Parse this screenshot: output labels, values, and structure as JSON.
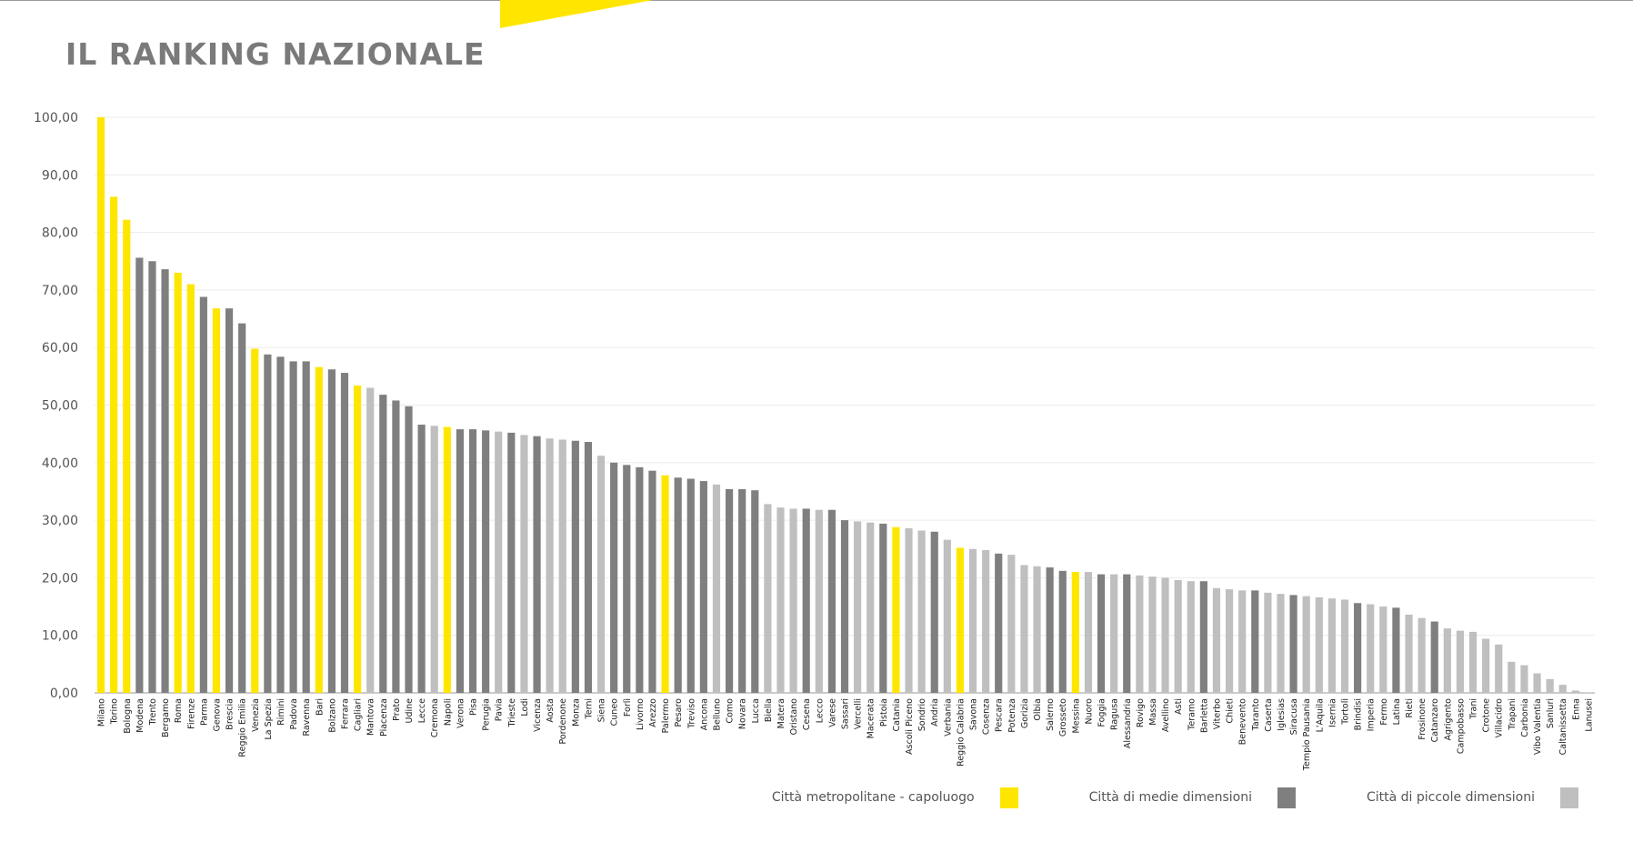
{
  "page": {
    "title": "IL RANKING NAZIONALE"
  },
  "colors": {
    "metropolitana": "#ffe600",
    "media": "#7f7f7f",
    "piccola": "#bfbfbf",
    "brand": "#ffe600"
  },
  "legend": [
    {
      "key": "metropolitana",
      "label": "Città metropolitane - capoluogo"
    },
    {
      "key": "media",
      "label": "Città di medie dimensioni"
    },
    {
      "key": "piccola",
      "label": "Città di piccole dimensioni"
    }
  ],
  "chart_data": {
    "type": "bar",
    "title": "IL RANKING NAZIONALE",
    "xlabel": "",
    "ylabel": "",
    "ylim": [
      0,
      100
    ],
    "yticks": [
      "0,00",
      "10,00",
      "20,00",
      "30,00",
      "40,00",
      "50,00",
      "60,00",
      "70,00",
      "80,00",
      "90,00",
      "100,00"
    ],
    "grid": true,
    "legend_position": "bottom-right",
    "series_keys": [
      "metropolitana",
      "media",
      "piccola"
    ],
    "categories": [
      "Milano",
      "Torino",
      "Bologna",
      "Modena",
      "Trento",
      "Bergamo",
      "Roma",
      "Firenze",
      "Parma",
      "Genova",
      "Brescia",
      "Reggio Emilia",
      "Venezia",
      "La Spezia",
      "Rimini",
      "Padova",
      "Ravenna",
      "Bari",
      "Bolzano",
      "Ferrara",
      "Cagliari",
      "Mantova",
      "Piacenza",
      "Prato",
      "Udine",
      "Lecce",
      "Cremona",
      "Napoli",
      "Verona",
      "Pisa",
      "Perugia",
      "Pavia",
      "Trieste",
      "Lodi",
      "Vicenza",
      "Aosta",
      "Pordenone",
      "Monza",
      "Terni",
      "Siena",
      "Cuneo",
      "Forlì",
      "Livorno",
      "Arezzo",
      "Palermo",
      "Pesaro",
      "Treviso",
      "Ancona",
      "Belluno",
      "Como",
      "Novara",
      "Lucca",
      "Biella",
      "Matera",
      "Oristano",
      "Cesena",
      "Lecco",
      "Varese",
      "Sassari",
      "Vercelli",
      "Macerata",
      "Pistoia",
      "Catania",
      "Ascoli Piceno",
      "Sondrio",
      "Andria",
      "Verbania",
      "Reggio Calabria",
      "Savona",
      "Cosenza",
      "Pescara",
      "Potenza",
      "Gorizia",
      "Olbia",
      "Salerno",
      "Grosseto",
      "Messina",
      "Nuoro",
      "Foggia",
      "Ragusa",
      "Alessandria",
      "Rovigo",
      "Massa",
      "Avellino",
      "Asti",
      "Teramo",
      "Barletta",
      "Viterbo",
      "Chieti",
      "Benevento",
      "Taranto",
      "Caserta",
      "Iglesias",
      "Siracusa",
      "Tempio Pausania",
      "L'Aquila",
      "Isernia",
      "Tortolì",
      "Brindisi",
      "Imperia",
      "Fermo",
      "Latina",
      "Rieti",
      "Frosinone",
      "Catanzaro",
      "Agrigento",
      "Campobasso",
      "Trani",
      "Crotone",
      "Villacidro",
      "Trapani",
      "Carbonia",
      "Vibo Valentia",
      "Sanluri",
      "Caltanissetta",
      "Enna",
      "Lanusei"
    ],
    "values": [
      100,
      86.2,
      82.2,
      75.6,
      75.0,
      73.6,
      73.0,
      71.0,
      68.8,
      66.8,
      66.8,
      64.2,
      59.8,
      58.8,
      58.4,
      57.6,
      57.6,
      56.6,
      56.2,
      55.6,
      53.4,
      53.0,
      51.8,
      50.8,
      49.8,
      46.6,
      46.4,
      46.2,
      45.8,
      45.8,
      45.6,
      45.4,
      45.2,
      44.8,
      44.6,
      44.2,
      44.0,
      43.8,
      43.6,
      41.2,
      40.0,
      39.6,
      39.2,
      38.6,
      37.8,
      37.4,
      37.2,
      36.8,
      36.2,
      35.4,
      35.4,
      35.2,
      32.8,
      32.2,
      32.0,
      32.0,
      31.8,
      31.8,
      30.0,
      29.8,
      29.6,
      29.4,
      28.8,
      28.6,
      28.2,
      28.0,
      26.6,
      25.2,
      25.0,
      24.8,
      24.2,
      24.0,
      22.2,
      22.0,
      21.8,
      21.2,
      21.0,
      21.0,
      20.6,
      20.6,
      20.6,
      20.4,
      20.2,
      20.0,
      19.6,
      19.4,
      19.4,
      18.2,
      18.0,
      17.8,
      17.8,
      17.4,
      17.2,
      17.0,
      16.8,
      16.6,
      16.4,
      16.2,
      15.6,
      15.4,
      15.0,
      14.8,
      13.6,
      13.0,
      12.4,
      11.2,
      10.8,
      10.6,
      9.4,
      8.4,
      5.4,
      4.8,
      3.4,
      2.4,
      1.4,
      0.4,
      0.1
    ],
    "groups": [
      "metropolitana",
      "metropolitana",
      "metropolitana",
      "media",
      "media",
      "media",
      "metropolitana",
      "metropolitana",
      "media",
      "metropolitana",
      "media",
      "media",
      "metropolitana",
      "media",
      "media",
      "media",
      "media",
      "metropolitana",
      "media",
      "media",
      "metropolitana",
      "piccola",
      "media",
      "media",
      "media",
      "media",
      "piccola",
      "metropolitana",
      "media",
      "media",
      "media",
      "piccola",
      "media",
      "piccola",
      "media",
      "piccola",
      "piccola",
      "media",
      "media",
      "piccola",
      "media",
      "media",
      "media",
      "media",
      "metropolitana",
      "media",
      "media",
      "media",
      "piccola",
      "media",
      "media",
      "media",
      "piccola",
      "piccola",
      "piccola",
      "media",
      "piccola",
      "media",
      "media",
      "piccola",
      "piccola",
      "media",
      "metropolitana",
      "piccola",
      "piccola",
      "media",
      "piccola",
      "metropolitana",
      "piccola",
      "piccola",
      "media",
      "piccola",
      "piccola",
      "piccola",
      "media",
      "media",
      "metropolitana",
      "piccola",
      "media",
      "piccola",
      "media",
      "piccola",
      "piccola",
      "piccola",
      "piccola",
      "piccola",
      "media",
      "piccola",
      "piccola",
      "piccola",
      "media",
      "piccola",
      "piccola",
      "media",
      "piccola",
      "piccola",
      "piccola",
      "piccola",
      "media",
      "piccola",
      "piccola",
      "media",
      "piccola",
      "piccola",
      "media",
      "piccola",
      "piccola",
      "piccola",
      "piccola",
      "piccola",
      "piccola",
      "piccola",
      "piccola",
      "piccola",
      "piccola",
      "piccola",
      "piccola"
    ]
  }
}
